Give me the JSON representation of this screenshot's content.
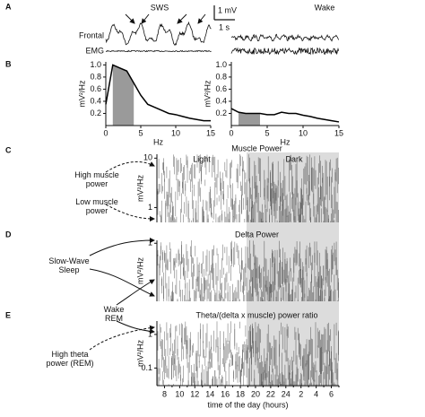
{
  "panel_labels": [
    "A",
    "B",
    "C",
    "D",
    "E"
  ],
  "panel_a": {
    "sws": "SWS",
    "wake": "Wake",
    "scale_v": "1 mV",
    "scale_t": "1 s",
    "frontal": "Frontal",
    "emg": "EMG"
  },
  "annotations": {
    "high_muscle": "High muscle power",
    "low_muscle": "Low muscle power",
    "sws": "Slow-Wave Sleep",
    "wake": "Wake",
    "rem": "REM",
    "high_theta": "High theta power (REM)"
  },
  "chart_data": [
    {
      "type": "line",
      "xlabel": "Hz",
      "ylabel": "mV²/Hz",
      "x": [
        0,
        1,
        2,
        3,
        4,
        5,
        6,
        7,
        8,
        9,
        10,
        11,
        12,
        13,
        14,
        15
      ],
      "values": [
        0.35,
        1.0,
        0.95,
        0.9,
        0.7,
        0.5,
        0.35,
        0.3,
        0.25,
        0.2,
        0.18,
        0.15,
        0.12,
        0.1,
        0.08,
        0.08
      ],
      "xlim": [
        0,
        15
      ],
      "ylim": [
        0,
        1.05
      ],
      "xticks": [
        0,
        5,
        10,
        15
      ],
      "yticks": [
        0.2,
        0.4,
        0.6,
        0.8,
        {
          "value": 1,
          "label": "1.0"
        }
      ],
      "color": "#000000",
      "shade": [
        1,
        4
      ],
      "shade_color": "#9a9a9a"
    },
    {
      "type": "line",
      "xlabel": "Hz",
      "ylabel": "mV²/Hz",
      "x": [
        0,
        1,
        2,
        3,
        4,
        5,
        6,
        7,
        8,
        9,
        10,
        11,
        12,
        13,
        14,
        15
      ],
      "values": [
        0.28,
        0.22,
        0.2,
        0.2,
        0.2,
        0.18,
        0.18,
        0.22,
        0.2,
        0.2,
        0.17,
        0.15,
        0.12,
        0.1,
        0.08,
        0.06
      ],
      "xlim": [
        0,
        15
      ],
      "ylim": [
        0,
        1.05
      ],
      "xticks": [
        0,
        5,
        10,
        15
      ],
      "yticks": [
        0.2,
        0.4,
        0.6,
        0.8,
        {
          "value": 1,
          "label": "1.0"
        }
      ],
      "color": "#000000",
      "shade": [
        1,
        4
      ],
      "shade_color": "#9a9a9a"
    },
    {
      "type": "raster",
      "title": "Muscle Power",
      "ylabel": "mV²/Hz",
      "log": true,
      "ylim": [
        0.5,
        12
      ],
      "yticks": [
        10,
        1
      ],
      "period_labels": [
        "Light",
        "Dark"
      ]
    },
    {
      "type": "raster",
      "title": "Delta Power",
      "ylabel": "mV²/Hz",
      "log": true,
      "ylim": [
        0.15,
        1.1
      ],
      "yticks": [
        1
      ]
    },
    {
      "type": "raster",
      "title": "Theta/(delta x muscle) power ratio",
      "ylabel": "mV²/Hz",
      "log": true,
      "ylim": [
        0.03,
        2.5
      ],
      "yticks": [
        1,
        0.1
      ],
      "categories": [
        "8",
        "10",
        "12",
        "14",
        "16",
        "18",
        "20",
        "22",
        "24",
        "2",
        "4",
        "6"
      ],
      "xlabel": "time of the day (hours)"
    }
  ]
}
